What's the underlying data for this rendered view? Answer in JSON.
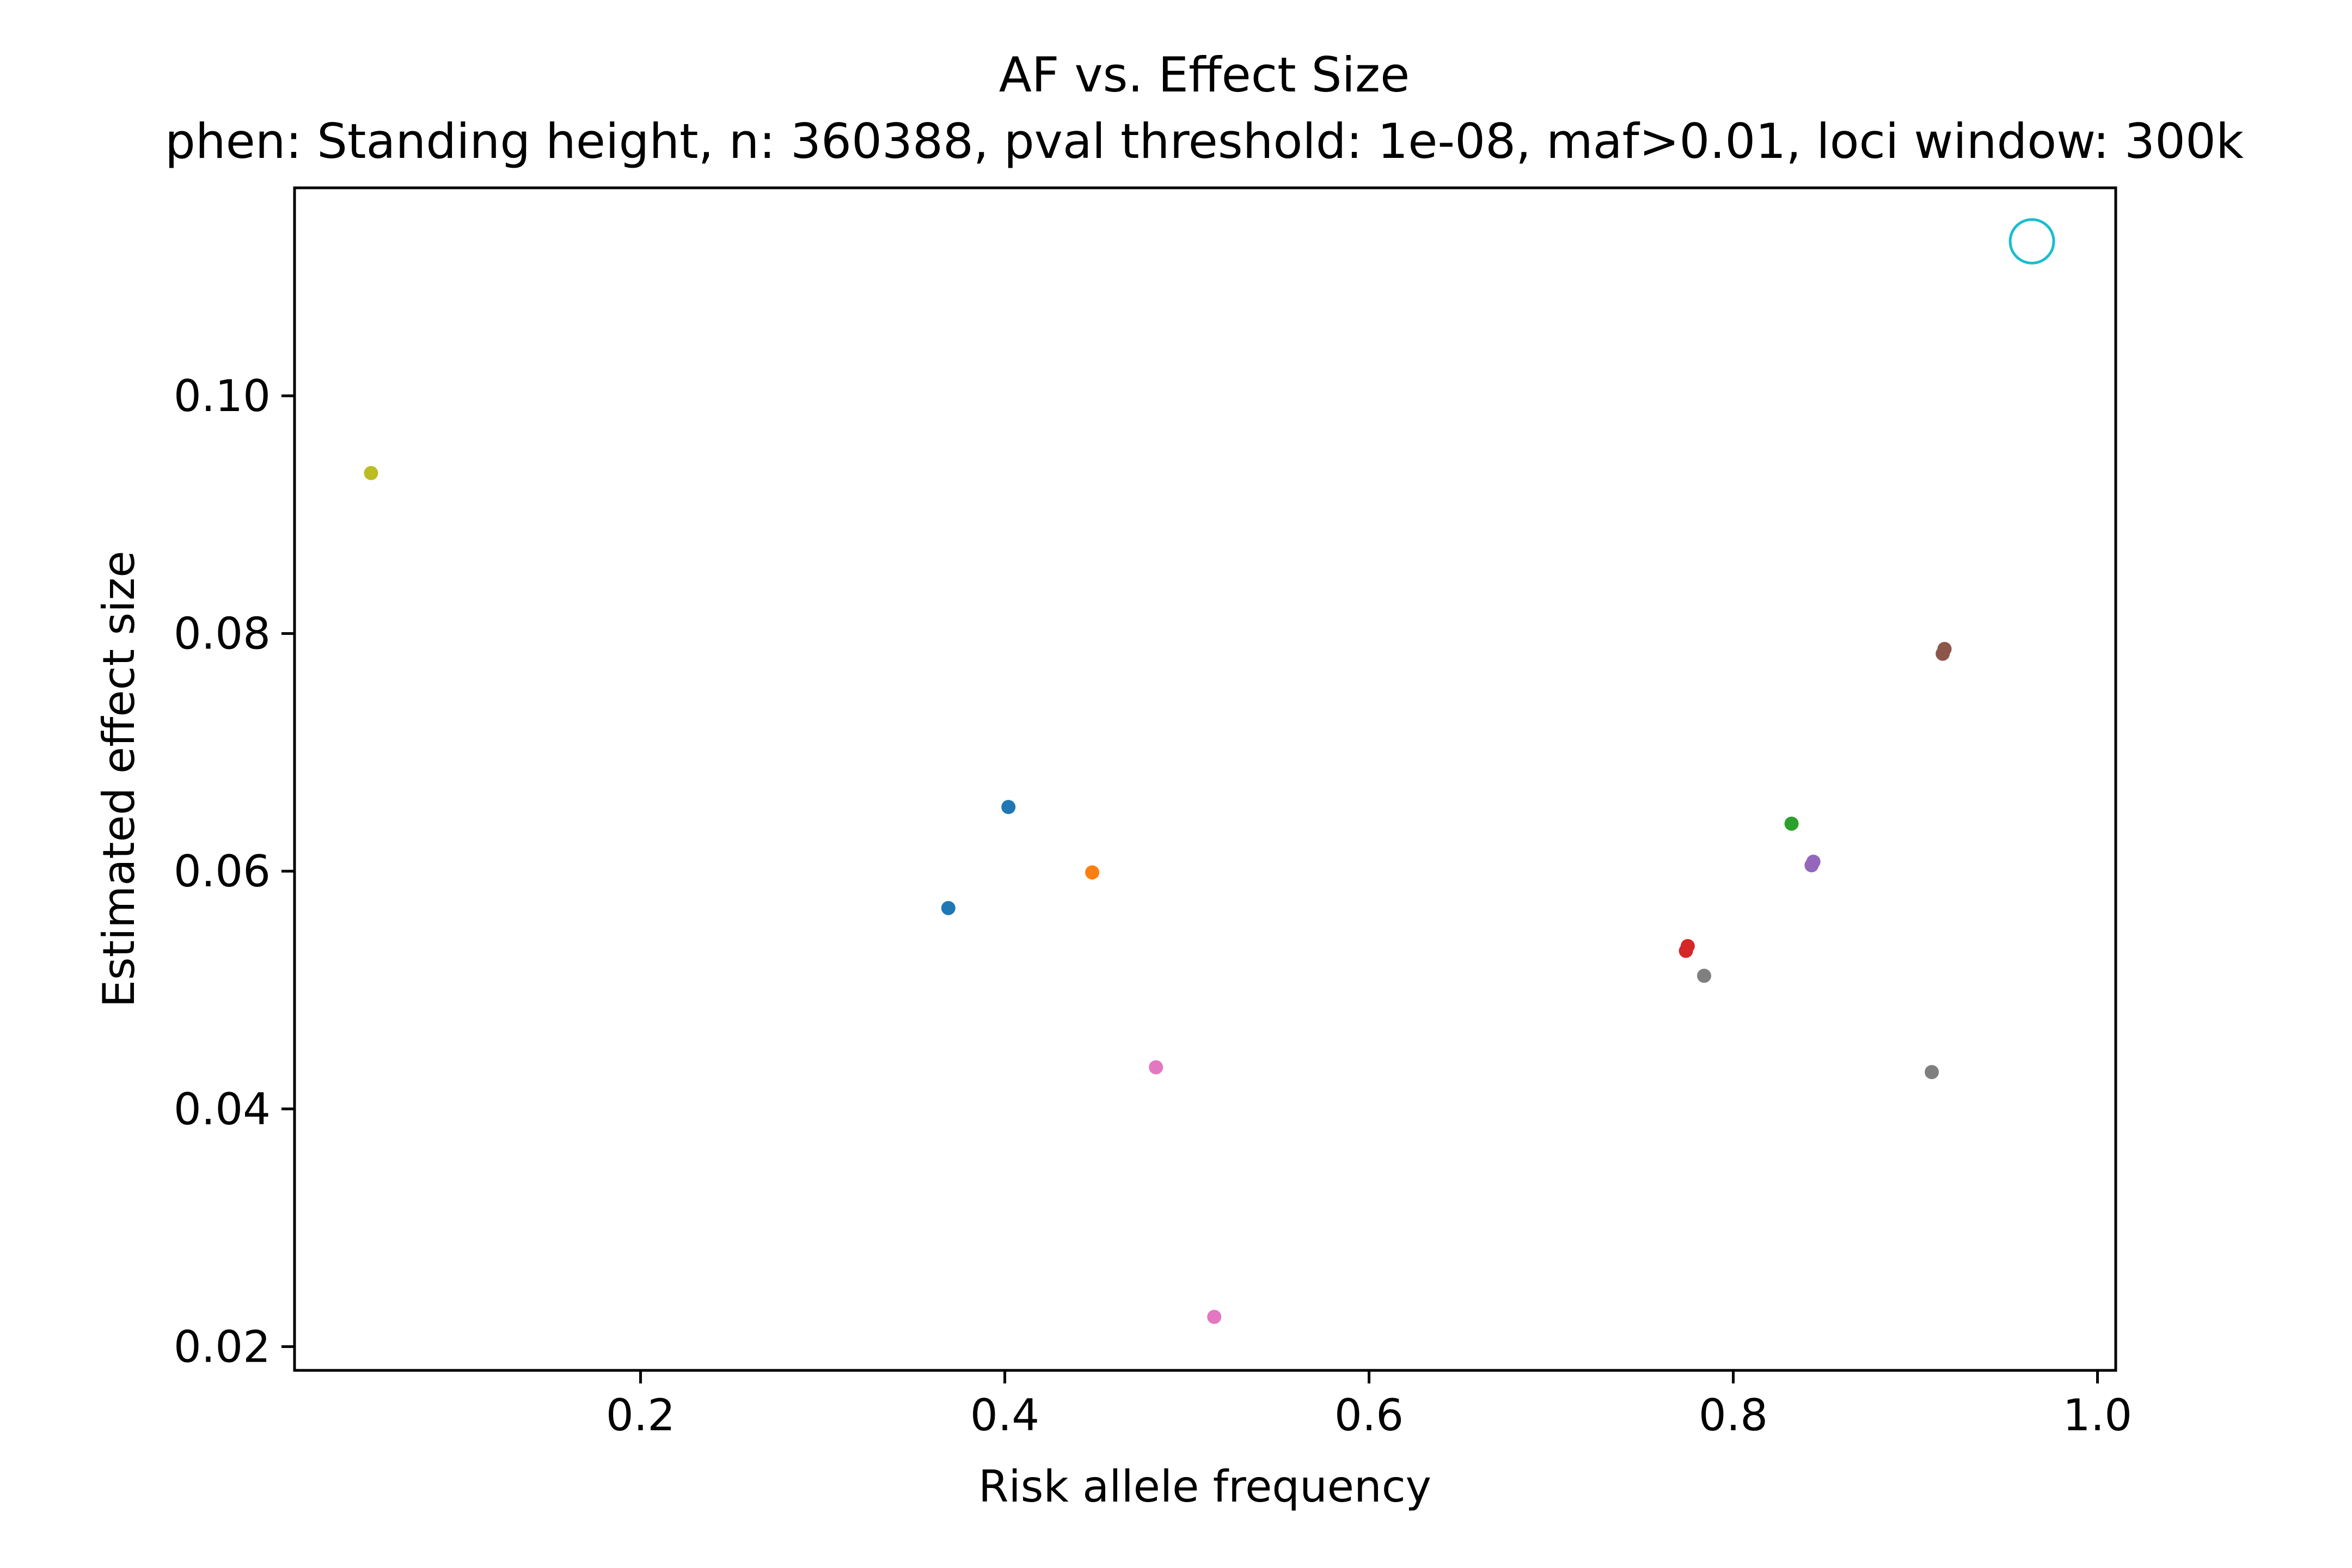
{
  "chart_data": {
    "type": "scatter",
    "title": "AF vs. Effect Size",
    "subtitle": "phen: Standing height, n: 360388, pval threshold: 1e-08, maf>0.01, loci window: 300k",
    "xlabel": "Risk allele frequency",
    "ylabel": "Estimated effect size",
    "xlim": [
      0.01,
      1.01
    ],
    "ylim": [
      0.018,
      0.1175
    ],
    "xticks": [
      "0.2",
      "0.4",
      "0.6",
      "0.8",
      "1.0"
    ],
    "yticks": [
      "0.02",
      "0.04",
      "0.06",
      "0.08",
      "0.10"
    ],
    "grid": false,
    "legend": "none",
    "points": [
      {
        "x": 0.369,
        "y": 0.0569,
        "color": "#1f77b4",
        "shape": "dot"
      },
      {
        "x": 0.402,
        "y": 0.0654,
        "color": "#1f77b4",
        "shape": "dot"
      },
      {
        "x": 0.448,
        "y": 0.0599,
        "color": "#ff7f0e",
        "shape": "dot"
      },
      {
        "x": 0.832,
        "y": 0.064,
        "color": "#2ca02c",
        "shape": "dot"
      },
      {
        "x": 0.775,
        "y": 0.0537,
        "color": "#d62728",
        "shape": "dot"
      },
      {
        "x": 0.774,
        "y": 0.0533,
        "color": "#d62728",
        "shape": "dot"
      },
      {
        "x": 0.844,
        "y": 0.0608,
        "color": "#9467bd",
        "shape": "dot"
      },
      {
        "x": 0.843,
        "y": 0.0605,
        "color": "#9467bd",
        "shape": "dot"
      },
      {
        "x": 0.916,
        "y": 0.0787,
        "color": "#8c564b",
        "shape": "dot"
      },
      {
        "x": 0.915,
        "y": 0.0783,
        "color": "#8c564b",
        "shape": "dot"
      },
      {
        "x": 0.483,
        "y": 0.0435,
        "color": "#e377c2",
        "shape": "dot"
      },
      {
        "x": 0.515,
        "y": 0.0225,
        "color": "#e377c2",
        "shape": "dot"
      },
      {
        "x": 0.784,
        "y": 0.0512,
        "color": "#7f7f7f",
        "shape": "dot"
      },
      {
        "x": 0.909,
        "y": 0.0431,
        "color": "#7f7f7f",
        "shape": "dot"
      },
      {
        "x": 0.052,
        "y": 0.0935,
        "color": "#bcbd22",
        "shape": "dot"
      },
      {
        "x": 0.964,
        "y": 0.113,
        "color": "#17becf",
        "shape": "open-circle"
      }
    ]
  }
}
